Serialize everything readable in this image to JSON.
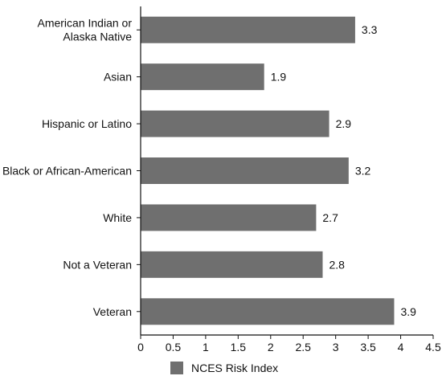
{
  "chart_data": {
    "type": "bar",
    "orientation": "horizontal",
    "categories": [
      "American Indian or Alaska Native",
      "Asian",
      "Hispanic or Latino",
      "Black or African-American",
      "White",
      "Not a Veteran",
      "Veteran"
    ],
    "category_label_lines": [
      [
        "American Indian or",
        "Alaska Native"
      ],
      [
        "Asian"
      ],
      [
        "Hispanic or Latino"
      ],
      [
        "Black or African-American"
      ],
      [
        "White"
      ],
      [
        "Not a Veteran"
      ],
      [
        "Veteran"
      ]
    ],
    "series": [
      {
        "name": "NCES Risk Index",
        "values": [
          3.3,
          1.9,
          2.9,
          3.2,
          2.7,
          2.8,
          3.9
        ],
        "value_labels": [
          "3.3",
          "1.9",
          "2.9",
          "3.2",
          "2.7",
          "2.8",
          "3.9"
        ]
      }
    ],
    "xlim": [
      0,
      4.5
    ],
    "x_ticks": [
      "0",
      "0.5",
      "1",
      "1.5",
      "2",
      "2.5",
      "3",
      "3.5",
      "4",
      "4.5"
    ],
    "grid": false,
    "legend_position": "bottom",
    "title": "",
    "xlabel": "",
    "ylabel": ""
  },
  "colors": {
    "bar": "#6f6f6f",
    "axis": "#111111",
    "text": "#111111"
  }
}
